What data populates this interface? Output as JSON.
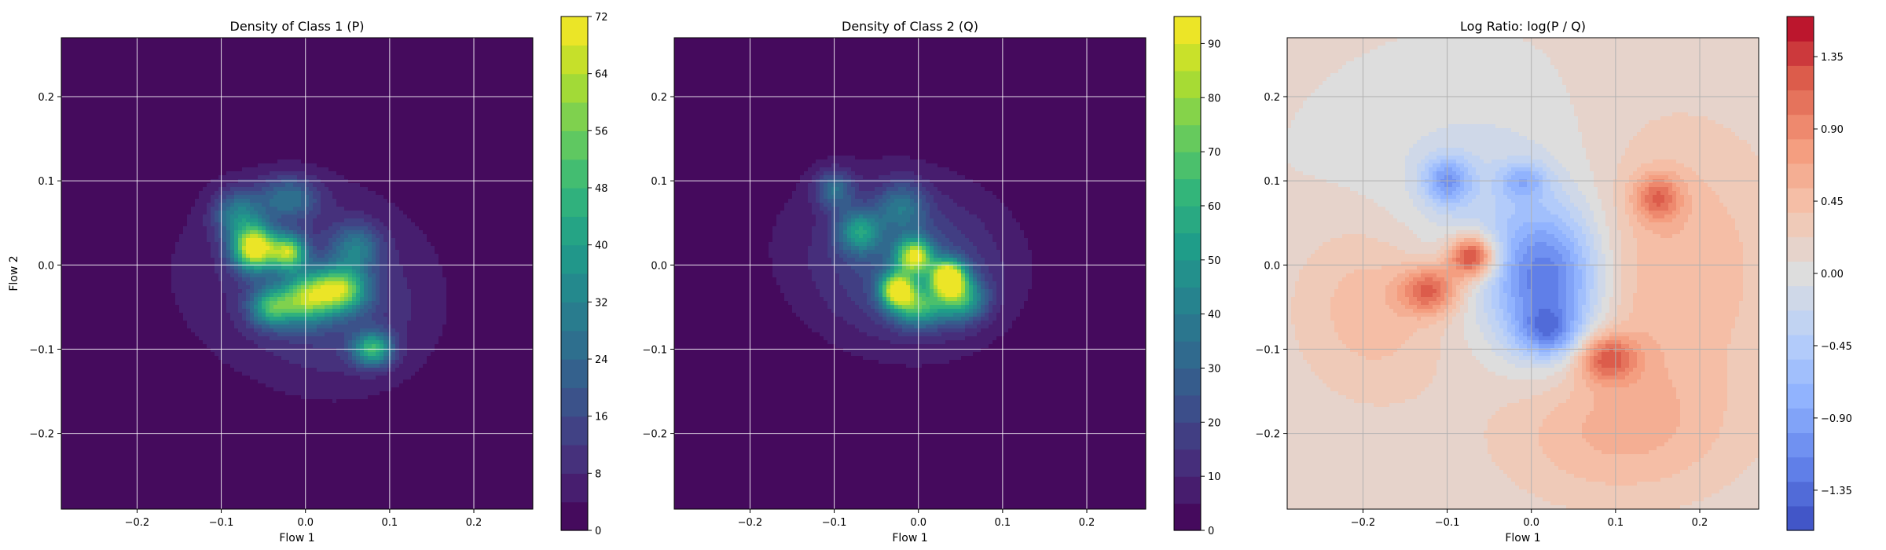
{
  "chart_data": [
    {
      "type": "heatmap",
      "title": "Density of Class 1 (P)",
      "xlabel": "Flow 1",
      "ylabel": "Flow 2",
      "xlim": [
        -0.29,
        0.27
      ],
      "ylim": [
        -0.29,
        0.27
      ],
      "xticks": [
        -0.2,
        -0.1,
        0.0,
        0.1,
        0.2
      ],
      "xtick_labels": [
        "−0.2",
        "−0.1",
        "0.0",
        "0.1",
        "0.2"
      ],
      "yticks": [
        -0.2,
        -0.1,
        0.0,
        0.1,
        0.2
      ],
      "ytick_labels": [
        "−0.2",
        "−0.1",
        "0.0",
        "0.1",
        "0.2"
      ],
      "grid": true,
      "colormap": "viridis",
      "color_range": [
        0,
        72
      ],
      "colorbar_ticks": [
        0,
        8,
        16,
        24,
        32,
        40,
        48,
        56,
        64,
        72
      ],
      "colorbar_tick_labels": [
        "0",
        "8",
        "16",
        "24",
        "32",
        "40",
        "48",
        "56",
        "64",
        "72"
      ],
      "levels": 18,
      "background_value": 0,
      "blobs": [
        {
          "x": -0.06,
          "y": 0.02,
          "sx": 0.018,
          "sy": 0.018,
          "value": 68
        },
        {
          "x": -0.02,
          "y": 0.015,
          "sx": 0.014,
          "sy": 0.014,
          "value": 50
        },
        {
          "x": 0.04,
          "y": -0.03,
          "sx": 0.022,
          "sy": 0.018,
          "value": 52
        },
        {
          "x": 0.0,
          "y": -0.04,
          "sx": 0.02,
          "sy": 0.02,
          "value": 42
        },
        {
          "x": -0.04,
          "y": -0.05,
          "sx": 0.018,
          "sy": 0.016,
          "value": 38
        },
        {
          "x": 0.08,
          "y": -0.1,
          "sx": 0.016,
          "sy": 0.014,
          "value": 40
        },
        {
          "x": -0.08,
          "y": 0.06,
          "sx": 0.02,
          "sy": 0.02,
          "value": 26
        },
        {
          "x": -0.02,
          "y": 0.08,
          "sx": 0.025,
          "sy": 0.018,
          "value": 22
        },
        {
          "x": 0.06,
          "y": 0.02,
          "sx": 0.02,
          "sy": 0.02,
          "value": 22
        },
        {
          "x": -0.01,
          "y": -0.01,
          "sx": 0.11,
          "sy": 0.085,
          "value": 10
        },
        {
          "x": 0.05,
          "y": -0.07,
          "sx": 0.07,
          "sy": 0.06,
          "value": 7
        }
      ]
    },
    {
      "type": "heatmap",
      "title": "Density of Class 2 (Q)",
      "xlabel": "Flow 1",
      "ylabel": "",
      "xlim": [
        -0.29,
        0.27
      ],
      "ylim": [
        -0.29,
        0.27
      ],
      "xticks": [
        -0.2,
        -0.1,
        0.0,
        0.1,
        0.2
      ],
      "xtick_labels": [
        "−0.2",
        "−0.1",
        "0.0",
        "0.1",
        "0.2"
      ],
      "yticks": [
        -0.2,
        -0.1,
        0.0,
        0.1,
        0.2
      ],
      "ytick_labels": [
        "−0.2",
        "−0.1",
        "0.0",
        "0.1",
        "0.2"
      ],
      "grid": true,
      "colormap": "viridis",
      "color_range": [
        0,
        95
      ],
      "colorbar_ticks": [
        0,
        10,
        20,
        30,
        40,
        50,
        60,
        70,
        80,
        90
      ],
      "colorbar_tick_labels": [
        "0",
        "10",
        "20",
        "30",
        "40",
        "50",
        "60",
        "70",
        "80",
        "90"
      ],
      "levels": 19,
      "background_value": 0,
      "blobs": [
        {
          "x": 0.035,
          "y": -0.015,
          "sx": 0.014,
          "sy": 0.014,
          "value": 92
        },
        {
          "x": -0.025,
          "y": -0.03,
          "sx": 0.014,
          "sy": 0.014,
          "value": 80
        },
        {
          "x": -0.005,
          "y": 0.01,
          "sx": 0.015,
          "sy": 0.015,
          "value": 72
        },
        {
          "x": 0.0,
          "y": -0.05,
          "sx": 0.02,
          "sy": 0.016,
          "value": 45
        },
        {
          "x": 0.05,
          "y": -0.04,
          "sx": 0.02,
          "sy": 0.018,
          "value": 48
        },
        {
          "x": -0.07,
          "y": 0.04,
          "sx": 0.018,
          "sy": 0.018,
          "value": 40
        },
        {
          "x": -0.1,
          "y": 0.09,
          "sx": 0.016,
          "sy": 0.016,
          "value": 28
        },
        {
          "x": -0.02,
          "y": 0.07,
          "sx": 0.02,
          "sy": 0.02,
          "value": 26
        },
        {
          "x": 0.0,
          "y": -0.015,
          "sx": 0.075,
          "sy": 0.06,
          "value": 18
        },
        {
          "x": -0.05,
          "y": 0.03,
          "sx": 0.1,
          "sy": 0.075,
          "value": 9
        }
      ]
    },
    {
      "type": "heatmap",
      "title": "Log Ratio: log(P / Q)",
      "xlabel": "Flow 1",
      "ylabel": "",
      "xlim": [
        -0.29,
        0.27
      ],
      "ylim": [
        -0.29,
        0.27
      ],
      "xticks": [
        -0.2,
        -0.1,
        0.0,
        0.1,
        0.2
      ],
      "xtick_labels": [
        "−0.2",
        "−0.1",
        "0.0",
        "0.1",
        "0.2"
      ],
      "yticks": [
        -0.2,
        -0.1,
        0.0,
        0.1,
        0.2
      ],
      "ytick_labels": [
        "−0.2",
        "−0.1",
        "0.0",
        "0.1",
        "0.2"
      ],
      "grid": true,
      "colormap": "coolwarm",
      "color_range": [
        -1.6,
        1.6
      ],
      "colorbar_ticks": [
        -1.35,
        -0.9,
        -0.45,
        0.0,
        0.45,
        0.9,
        1.35
      ],
      "colorbar_tick_labels": [
        "−1.35",
        "−0.90",
        "−0.45",
        "0.00",
        "0.45",
        "0.90",
        "1.35"
      ],
      "levels": 21,
      "background_value": 0.1,
      "blobs": [
        {
          "x": -0.07,
          "y": 0.01,
          "sx": 0.02,
          "sy": 0.018,
          "value": 1.5
        },
        {
          "x": -0.12,
          "y": -0.03,
          "sx": 0.025,
          "sy": 0.02,
          "value": 1.0
        },
        {
          "x": 0.09,
          "y": -0.11,
          "sx": 0.025,
          "sy": 0.02,
          "value": 0.95
        },
        {
          "x": 0.15,
          "y": 0.08,
          "sx": 0.02,
          "sy": 0.02,
          "value": 0.8
        },
        {
          "x": -0.18,
          "y": -0.04,
          "sx": 0.07,
          "sy": 0.08,
          "value": 0.5
        },
        {
          "x": 0.15,
          "y": 0.0,
          "sx": 0.1,
          "sy": 0.12,
          "value": 0.5
        },
        {
          "x": 0.1,
          "y": -0.2,
          "sx": 0.1,
          "sy": 0.06,
          "value": 0.4
        },
        {
          "x": 0.02,
          "y": -0.02,
          "sx": 0.045,
          "sy": 0.06,
          "value": -1.3
        },
        {
          "x": -0.1,
          "y": 0.1,
          "sx": 0.02,
          "sy": 0.02,
          "value": -0.9
        },
        {
          "x": 0.02,
          "y": -0.08,
          "sx": 0.025,
          "sy": 0.02,
          "value": -0.75
        },
        {
          "x": -0.01,
          "y": 0.1,
          "sx": 0.02,
          "sy": 0.015,
          "value": -0.6
        },
        {
          "x": -0.05,
          "y": 0.05,
          "sx": 0.12,
          "sy": 0.1,
          "value": -0.4
        }
      ]
    }
  ]
}
